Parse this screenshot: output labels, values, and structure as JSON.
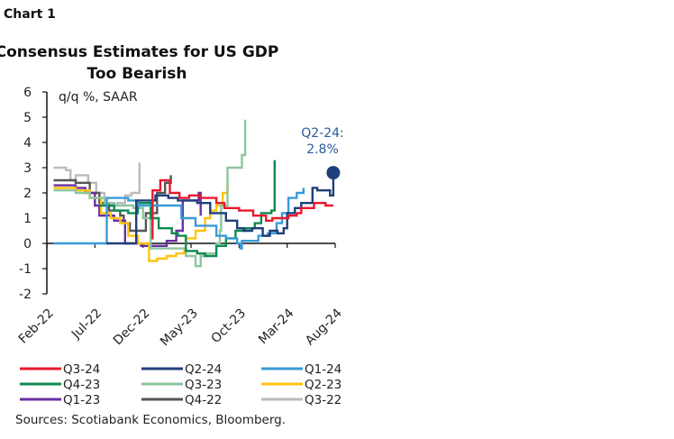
{
  "chart_label": "Chart 1",
  "sources": "Sources: Scotiabank Economics, Bloomberg.",
  "chart_data": {
    "type": "line",
    "title": [
      "Consensus Estimates for US GDP",
      "Too Bearish"
    ],
    "ylabel": "q/q %, SAAR",
    "ylim": [
      -2,
      6
    ],
    "yticks": [
      "6",
      "5",
      "4",
      "3",
      "2",
      "1",
      "0",
      "-1",
      "-2"
    ],
    "xticks": [
      "Feb-22",
      "Jul-22",
      "Dec-22",
      "May-23",
      "Oct-23",
      "Mar-24",
      "Aug-24"
    ],
    "xlim": [
      "2022-02-01",
      "2024-08-01"
    ],
    "grid": false,
    "legend_position": "bottom",
    "annotation": {
      "lines": [
        "Q2-24:",
        "2.8%"
      ],
      "series": "Q2-24",
      "value": 2.8,
      "color": "#2a5a9a"
    },
    "series": [
      {
        "name": "Q3-24",
        "color": "#e8192c",
        "points": [
          [
            "2022-12-28",
            0.2
          ],
          [
            "2023-01-01",
            2.1
          ],
          [
            "2023-01-25",
            2.5
          ],
          [
            "2023-02-25",
            2.0
          ],
          [
            "2023-03-25",
            1.8
          ],
          [
            "2023-04-25",
            1.9
          ],
          [
            "2023-06-01",
            1.8
          ],
          [
            "2023-07-20",
            1.6
          ],
          [
            "2023-08-15",
            1.4
          ],
          [
            "2023-10-01",
            1.3
          ],
          [
            "2023-11-15",
            1.1
          ],
          [
            "2023-12-25",
            0.9
          ],
          [
            "2024-01-15",
            1.0
          ],
          [
            "2024-03-05",
            1.1
          ],
          [
            "2024-04-01",
            1.2
          ],
          [
            "2024-04-15",
            1.4
          ],
          [
            "2024-05-25",
            1.6
          ],
          [
            "2024-06-15",
            1.6
          ],
          [
            "2024-07-01",
            1.5
          ],
          [
            "2024-07-25",
            1.5
          ]
        ]
      },
      {
        "name": "Q2-24",
        "color": "#1f3f7a",
        "points": [
          [
            "2022-08-07",
            0.0
          ],
          [
            "2022-11-07",
            0.0
          ],
          [
            "2022-11-10",
            1.7
          ],
          [
            "2023-01-10",
            1.9
          ],
          [
            "2023-02-20",
            1.8
          ],
          [
            "2023-03-20",
            1.7
          ],
          [
            "2023-05-20",
            1.6
          ],
          [
            "2023-07-01",
            1.2
          ],
          [
            "2023-08-20",
            0.9
          ],
          [
            "2023-09-25",
            0.6
          ],
          [
            "2023-10-15",
            0.5
          ],
          [
            "2023-11-12",
            0.6
          ],
          [
            "2023-12-15",
            0.3
          ],
          [
            "2024-01-07",
            0.5
          ],
          [
            "2024-02-01",
            0.4
          ],
          [
            "2024-02-20",
            0.6
          ],
          [
            "2024-03-01",
            1.2
          ],
          [
            "2024-03-25",
            1.4
          ],
          [
            "2024-04-15",
            1.6
          ],
          [
            "2024-05-20",
            2.2
          ],
          [
            "2024-06-05",
            2.1
          ],
          [
            "2024-07-15",
            1.9
          ],
          [
            "2024-07-25",
            2.8
          ]
        ]
      },
      {
        "name": "Q1-24",
        "color": "#3a9ad9",
        "points": [
          [
            "2022-02-22",
            0.0
          ],
          [
            "2022-08-07",
            0.0
          ],
          [
            "2022-08-08",
            1.8
          ],
          [
            "2022-10-15",
            1.7
          ],
          [
            "2022-11-15",
            1.5
          ],
          [
            "2023-03-28",
            1.5
          ],
          [
            "2023-04-01",
            1.0
          ],
          [
            "2023-05-15",
            0.7
          ],
          [
            "2023-07-20",
            0.3
          ],
          [
            "2023-08-20",
            0.2
          ],
          [
            "2023-09-25",
            0.0
          ],
          [
            "2023-10-05",
            -0.2
          ],
          [
            "2023-10-10",
            0.1
          ],
          [
            "2023-12-01",
            0.3
          ],
          [
            "2024-01-01",
            0.4
          ],
          [
            "2024-01-28",
            0.8
          ],
          [
            "2024-02-15",
            1.2
          ],
          [
            "2024-03-05",
            1.8
          ],
          [
            "2024-04-01",
            2.0
          ],
          [
            "2024-04-22",
            2.2
          ]
        ]
      },
      {
        "name": "Q4-23",
        "color": "#0f8a50",
        "points": [
          [
            "2022-07-15",
            1.5
          ],
          [
            "2022-09-01",
            1.3
          ],
          [
            "2022-10-15",
            1.2
          ],
          [
            "2022-11-15",
            1.6
          ],
          [
            "2022-12-25",
            1.0
          ],
          [
            "2023-01-20",
            0.6
          ],
          [
            "2023-03-01",
            0.4
          ],
          [
            "2023-03-20",
            0.3
          ],
          [
            "2023-04-15",
            -0.3
          ],
          [
            "2023-05-20",
            -0.4
          ],
          [
            "2023-06-15",
            -0.5
          ],
          [
            "2023-07-20",
            -0.1
          ],
          [
            "2023-08-20",
            0.2
          ],
          [
            "2023-09-20",
            0.5
          ],
          [
            "2023-10-20",
            0.6
          ],
          [
            "2023-11-20",
            0.8
          ],
          [
            "2023-12-10",
            1.2
          ],
          [
            "2024-01-12",
            1.3
          ],
          [
            "2024-01-22",
            3.3
          ]
        ]
      },
      {
        "name": "Q3-23",
        "color": "#8cc5a0",
        "points": [
          [
            "2022-02-22",
            2.1
          ],
          [
            "2022-05-01",
            2.0
          ],
          [
            "2022-06-15",
            1.8
          ],
          [
            "2022-08-01",
            1.6
          ],
          [
            "2022-09-01",
            1.5
          ],
          [
            "2022-11-01",
            1.4
          ],
          [
            "2022-12-01",
            1.0
          ],
          [
            "2022-12-25",
            -0.2
          ],
          [
            "2023-03-15",
            -0.2
          ],
          [
            "2023-04-15",
            -0.5
          ],
          [
            "2023-05-15",
            -0.9
          ],
          [
            "2023-06-01",
            -0.5
          ],
          [
            "2023-06-20",
            -0.4
          ],
          [
            "2023-07-20",
            0.0
          ],
          [
            "2023-08-01",
            0.5
          ],
          [
            "2023-08-05",
            1.5
          ],
          [
            "2023-08-25",
            3.0
          ],
          [
            "2023-10-01",
            3.0
          ],
          [
            "2023-10-10",
            3.5
          ],
          [
            "2023-10-20",
            4.9
          ]
        ]
      },
      {
        "name": "Q2-23",
        "color": "#ffc20e",
        "points": [
          [
            "2022-02-22",
            2.2
          ],
          [
            "2022-05-01",
            2.1
          ],
          [
            "2022-06-15",
            1.8
          ],
          [
            "2022-07-20",
            1.2
          ],
          [
            "2022-08-20",
            1.0
          ],
          [
            "2022-09-20",
            0.8
          ],
          [
            "2022-10-15",
            0.3
          ],
          [
            "2022-11-15",
            0.0
          ],
          [
            "2022-12-20",
            -0.7
          ],
          [
            "2023-01-15",
            -0.6
          ],
          [
            "2023-02-15",
            -0.5
          ],
          [
            "2023-03-15",
            -0.4
          ],
          [
            "2023-04-10",
            -0.3
          ],
          [
            "2023-04-15",
            0.2
          ],
          [
            "2023-05-15",
            0.5
          ],
          [
            "2023-06-15",
            1.0
          ],
          [
            "2023-07-01",
            1.3
          ],
          [
            "2023-07-20",
            1.5
          ],
          [
            "2023-08-10",
            2.0
          ],
          [
            "2023-08-25",
            2.4
          ]
        ]
      },
      {
        "name": "Q1-23",
        "color": "#6a2fa0",
        "points": [
          [
            "2022-02-22",
            2.3
          ],
          [
            "2022-05-01",
            2.2
          ],
          [
            "2022-06-01",
            2.0
          ],
          [
            "2022-07-01",
            1.5
          ],
          [
            "2022-07-15",
            1.1
          ],
          [
            "2022-09-01",
            0.9
          ],
          [
            "2022-10-05",
            0.0
          ],
          [
            "2022-11-25",
            -0.1
          ],
          [
            "2023-02-15",
            0.1
          ],
          [
            "2023-03-15",
            0.5
          ],
          [
            "2023-04-05",
            1.7
          ],
          [
            "2023-05-10",
            1.7
          ],
          [
            "2023-05-25",
            2.0
          ],
          [
            "2023-06-01",
            1.1
          ]
        ]
      },
      {
        "name": "Q4-22",
        "color": "#555555",
        "points": [
          [
            "2022-02-22",
            2.5
          ],
          [
            "2022-05-01",
            2.4
          ],
          [
            "2022-06-15",
            2.0
          ],
          [
            "2022-07-15",
            1.6
          ],
          [
            "2022-08-15",
            1.3
          ],
          [
            "2022-09-20",
            1.1
          ],
          [
            "2022-10-01",
            0.8
          ],
          [
            "2022-10-20",
            0.5
          ],
          [
            "2022-12-10",
            1.2
          ],
          [
            "2023-01-15",
            2.0
          ],
          [
            "2023-02-10",
            2.4
          ],
          [
            "2023-02-28",
            2.7
          ]
        ]
      },
      {
        "name": "Q3-22",
        "color": "#bbbbbb",
        "points": [
          [
            "2022-02-22",
            3.0
          ],
          [
            "2022-04-01",
            2.9
          ],
          [
            "2022-04-15",
            2.5
          ],
          [
            "2022-05-01",
            2.7
          ],
          [
            "2022-06-10",
            2.4
          ],
          [
            "2022-07-05",
            2.0
          ],
          [
            "2022-08-01",
            1.5
          ],
          [
            "2022-09-10",
            1.6
          ],
          [
            "2022-10-05",
            1.9
          ],
          [
            "2022-10-25",
            2.0
          ],
          [
            "2022-11-20",
            3.2
          ]
        ]
      }
    ]
  }
}
